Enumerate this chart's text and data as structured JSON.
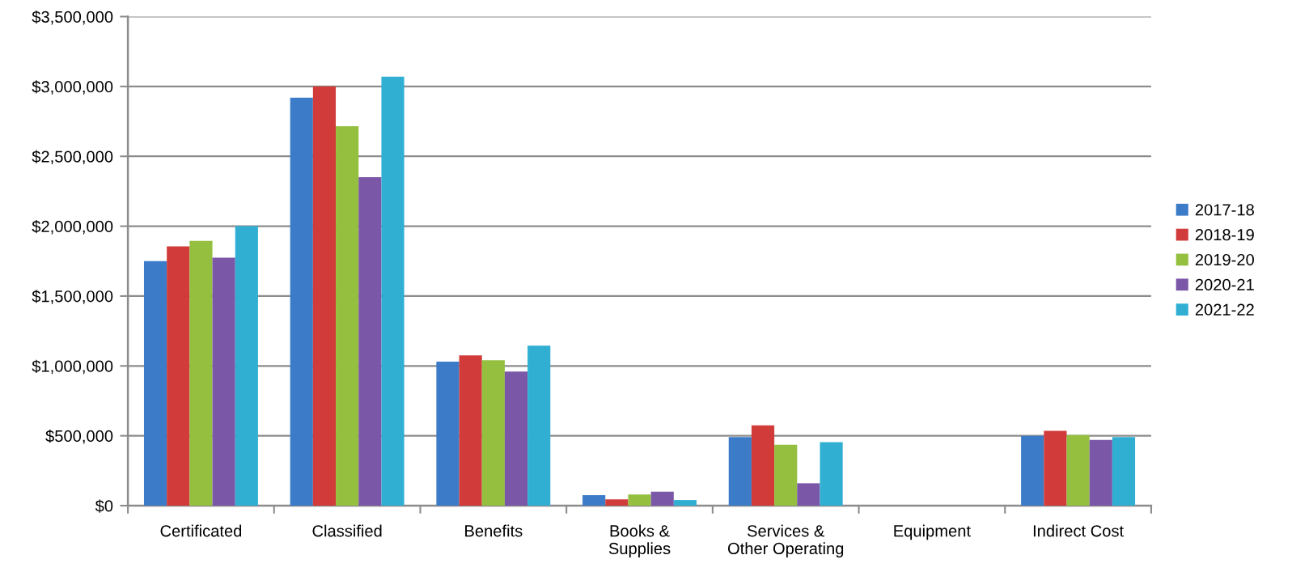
{
  "chart_data": {
    "type": "bar",
    "categories": [
      "Certificated",
      "Classified",
      "Benefits",
      "Books &\nSupplies",
      "Services &\nOther Operating",
      "Equipment",
      "Indirect Cost"
    ],
    "series": [
      {
        "name": "2017-18",
        "color": "#3b7bc8",
        "values": [
          1750000,
          2920000,
          1030000,
          75000,
          490000,
          null,
          500000
        ]
      },
      {
        "name": "2018-19",
        "color": "#d13b3a",
        "values": [
          1855000,
          3000000,
          1075000,
          45000,
          575000,
          null,
          535000
        ]
      },
      {
        "name": "2019-20",
        "color": "#95bf3f",
        "values": [
          1895000,
          2715000,
          1040000,
          80000,
          435000,
          null,
          505000
        ]
      },
      {
        "name": "2020-21",
        "color": "#7b57a8",
        "values": [
          1775000,
          2350000,
          960000,
          100000,
          160000,
          null,
          470000
        ]
      },
      {
        "name": "2021-22",
        "color": "#31afd3",
        "values": [
          2000000,
          3070000,
          1145000,
          40000,
          455000,
          null,
          490000
        ]
      }
    ],
    "ylim": [
      0,
      3500000
    ],
    "yticks": [
      {
        "value": 0,
        "label": "$0"
      },
      {
        "value": 500000,
        "label": "$500,000"
      },
      {
        "value": 1000000,
        "label": "$1,000,000"
      },
      {
        "value": 1500000,
        "label": "$1,500,000"
      },
      {
        "value": 2000000,
        "label": "$2,000,000"
      },
      {
        "value": 2500000,
        "label": "$2,500,000"
      },
      {
        "value": 3000000,
        "label": "$3,000,000"
      },
      {
        "value": 3500000,
        "label": "$3,500,000"
      }
    ],
    "grid": "y",
    "legend": "right"
  }
}
